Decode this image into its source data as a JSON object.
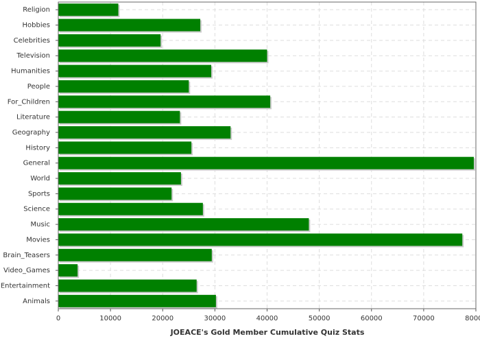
{
  "chart_data": {
    "type": "hbar",
    "x_label": "JOEACE's Gold Member Cumulative Quiz Stats",
    "categories": [
      "Religion",
      "Hobbies",
      "Celebrities",
      "Television",
      "Humanities",
      "People",
      "For_Children",
      "Literature",
      "Geography",
      "History",
      "General",
      "World",
      "Sports",
      "Science",
      "Music",
      "Movies",
      "Brain_Teasers",
      "Video_Games",
      "Entertainment",
      "Animals"
    ],
    "values": [
      11500,
      27200,
      19600,
      40000,
      29300,
      25000,
      40600,
      23300,
      33000,
      25500,
      79600,
      23500,
      21700,
      27700,
      48000,
      77400,
      29400,
      3700,
      26500,
      30200
    ],
    "color": "#008000",
    "xlim": [
      0,
      80000
    ],
    "xticks": [
      0,
      10000,
      20000,
      30000,
      40000,
      50000,
      60000,
      70000,
      80000
    ],
    "grid": true
  }
}
